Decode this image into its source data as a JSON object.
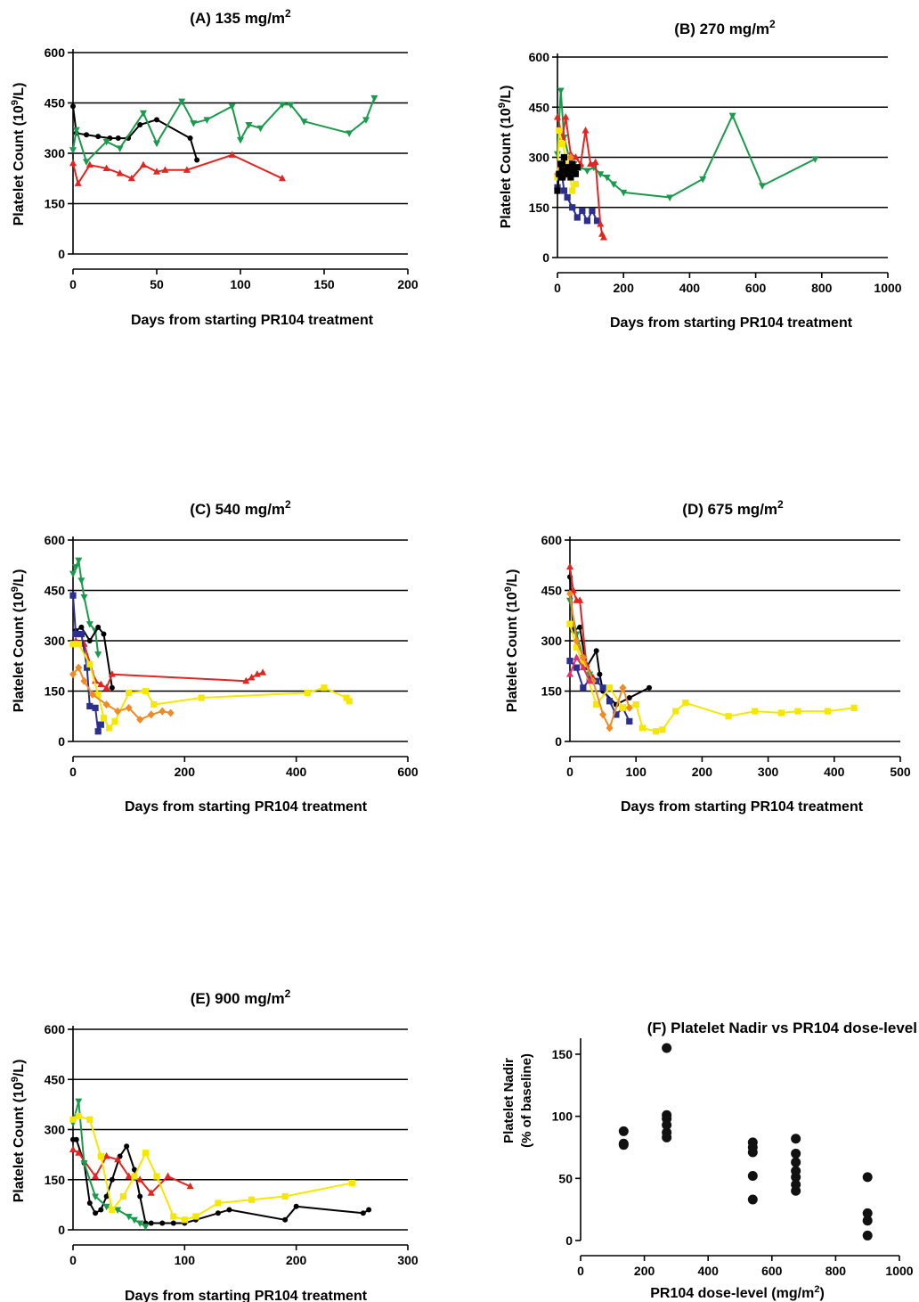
{
  "colors": {
    "black": "#000000",
    "red": "#e32420",
    "green": "#1a9a4c",
    "blue": "#2b2f8f",
    "yellow": "#f5e800",
    "orange": "#f08a24",
    "magenta": "#e0306e"
  },
  "chart_data": [
    {
      "type": "line",
      "title": "(A) 135 mg/m",
      "title_sup": "2",
      "xlabel": "Days from starting PR104 treatment",
      "ylabel": "Platelet Count (10",
      "ylabel_sup": "9",
      "ylabel_end": "/L)",
      "xlim": [
        0,
        200
      ],
      "ylim": [
        0,
        600
      ],
      "xticks": [
        "0",
        "50",
        "100",
        "150",
        "200"
      ],
      "yticks": [
        "0",
        "150",
        "300",
        "450",
        "600"
      ],
      "grid": "horizontal",
      "series": [
        {
          "color": "black",
          "marker": "circle",
          "x": [
            0,
            2,
            8,
            15,
            22,
            27,
            33,
            40,
            50,
            70,
            74
          ],
          "y": [
            440,
            360,
            355,
            350,
            345,
            345,
            345,
            385,
            400,
            345,
            280
          ]
        },
        {
          "color": "red",
          "marker": "triangle-up",
          "x": [
            0,
            3,
            10,
            20,
            28,
            35,
            42,
            50,
            55,
            68,
            95,
            125
          ],
          "y": [
            270,
            210,
            265,
            255,
            240,
            225,
            265,
            245,
            250,
            250,
            295,
            225
          ]
        },
        {
          "color": "green",
          "marker": "triangle-down",
          "x": [
            0,
            2,
            8,
            20,
            28,
            42,
            50,
            65,
            72,
            80,
            95,
            100,
            105,
            112,
            125,
            130,
            138,
            165,
            175,
            180
          ],
          "y": [
            310,
            370,
            275,
            335,
            315,
            420,
            330,
            455,
            390,
            400,
            440,
            340,
            385,
            375,
            445,
            445,
            395,
            360,
            400,
            465
          ]
        }
      ]
    },
    {
      "type": "line",
      "title": "(B) 270 mg/m",
      "title_sup": "2",
      "xlabel": "Days from starting PR104 treatment",
      "ylabel": "Platelet Count (10",
      "ylabel_sup": "9",
      "ylabel_end": "/L)",
      "xlim": [
        0,
        1000
      ],
      "ylim": [
        0,
        600
      ],
      "xticks": [
        "0",
        "200",
        "400",
        "600",
        "800",
        "1000"
      ],
      "yticks": [
        "0",
        "150",
        "300",
        "450",
        "600"
      ],
      "grid": "horizontal",
      "series": [
        {
          "color": "green",
          "marker": "triangle-down",
          "x": [
            0,
            10,
            20,
            35,
            50,
            70,
            90,
            110,
            130,
            150,
            170,
            200,
            340,
            440,
            530,
            620,
            780
          ],
          "y": [
            310,
            500,
            360,
            300,
            280,
            270,
            260,
            270,
            250,
            240,
            220,
            195,
            180,
            235,
            425,
            215,
            295
          ]
        },
        {
          "color": "blue",
          "marker": "square",
          "x": [
            0,
            10,
            20,
            30,
            45,
            60,
            75,
            90,
            105,
            120
          ],
          "y": [
            210,
            280,
            200,
            180,
            150,
            120,
            140,
            110,
            140,
            110
          ]
        },
        {
          "color": "red",
          "marker": "triangle-up",
          "x": [
            0,
            15,
            25,
            40,
            55,
            70,
            85,
            100,
            115,
            130,
            135,
            140
          ],
          "y": [
            420,
            360,
            420,
            310,
            300,
            280,
            380,
            280,
            285,
            100,
            70,
            60
          ]
        },
        {
          "color": "yellow",
          "marker": "square",
          "x": [
            0,
            5,
            15,
            25,
            35,
            45,
            55
          ],
          "y": [
            240,
            380,
            340,
            300,
            260,
            200,
            220
          ]
        },
        {
          "color": "orange",
          "marker": "diamond",
          "x": [
            0,
            10,
            20,
            30,
            40
          ],
          "y": [
            250,
            270,
            240,
            260,
            300
          ]
        },
        {
          "color": "black",
          "marker": "square",
          "x": [
            0,
            5,
            10,
            15,
            20,
            25,
            30,
            35,
            40,
            45,
            50,
            55,
            60
          ],
          "y": [
            200,
            250,
            280,
            240,
            300,
            260,
            250,
            270,
            240,
            280,
            260,
            250,
            270
          ]
        }
      ]
    },
    {
      "type": "line",
      "title": "(C) 540 mg/m",
      "title_sup": "2",
      "xlabel": "Days from starting PR104 treatment",
      "ylabel": "Platelet Count (10",
      "ylabel_sup": "9",
      "ylabel_end": "/L)",
      "xlim": [
        0,
        600
      ],
      "ylim": [
        0,
        600
      ],
      "xticks": [
        "0",
        "200",
        "400",
        "600"
      ],
      "yticks": [
        "0",
        "150",
        "300",
        "450",
        "600"
      ],
      "grid": "horizontal",
      "series": [
        {
          "color": "green",
          "marker": "triangle-down",
          "x": [
            0,
            5,
            10,
            15,
            20,
            30,
            40,
            45
          ],
          "y": [
            500,
            520,
            540,
            480,
            430,
            350,
            330,
            260
          ]
        },
        {
          "color": "black",
          "marker": "circle",
          "x": [
            5,
            15,
            30,
            45,
            55,
            70
          ],
          "y": [
            330,
            340,
            300,
            340,
            320,
            160
          ]
        },
        {
          "color": "red",
          "marker": "triangle-up",
          "x": [
            5,
            20,
            40,
            50,
            60,
            70,
            310,
            320,
            330,
            340
          ],
          "y": [
            300,
            290,
            180,
            170,
            160,
            200,
            180,
            190,
            200,
            205
          ]
        },
        {
          "color": "blue",
          "marker": "square",
          "x": [
            0,
            5,
            15,
            25,
            30,
            40,
            45,
            50
          ],
          "y": [
            435,
            320,
            320,
            220,
            105,
            100,
            30,
            50
          ]
        },
        {
          "color": "yellow",
          "marker": "square",
          "x": [
            0,
            10,
            30,
            45,
            55,
            65,
            75,
            100,
            130,
            145,
            230,
            420,
            450,
            490,
            495
          ],
          "y": [
            290,
            290,
            230,
            140,
            70,
            40,
            60,
            145,
            150,
            110,
            130,
            145,
            160,
            130,
            120
          ]
        },
        {
          "color": "orange",
          "marker": "diamond",
          "x": [
            0,
            10,
            20,
            35,
            60,
            80,
            100,
            120,
            140,
            160,
            175
          ],
          "y": [
            200,
            220,
            180,
            140,
            110,
            90,
            100,
            65,
            80,
            90,
            85
          ]
        }
      ]
    },
    {
      "type": "line",
      "title": "(D) 675 mg/m",
      "title_sup": "2",
      "xlabel": "Days from starting PR104 treatment",
      "ylabel": "Platelet Count (10",
      "ylabel_sup": "9",
      "ylabel_end": "/L)",
      "xlim": [
        0,
        500
      ],
      "ylim": [
        0,
        600
      ],
      "xticks": [
        "0",
        "100",
        "200",
        "300",
        "400",
        "500"
      ],
      "yticks": [
        "0",
        "150",
        "300",
        "450",
        "600"
      ],
      "grid": "horizontal",
      "series": [
        {
          "color": "black",
          "marker": "circle",
          "x": [
            0,
            5,
            15,
            25,
            40,
            45,
            50,
            70,
            90,
            120
          ],
          "y": [
            490,
            330,
            340,
            220,
            270,
            200,
            150,
            110,
            130,
            160
          ]
        },
        {
          "color": "red",
          "marker": "triangle-up",
          "x": [
            0,
            5,
            10,
            15,
            25,
            35
          ],
          "y": [
            520,
            450,
            420,
            420,
            230,
            190
          ]
        },
        {
          "color": "green",
          "marker": "triangle-down",
          "x": [
            0,
            10,
            20,
            30
          ],
          "y": [
            420,
            320,
            250,
            200
          ]
        },
        {
          "color": "blue",
          "marker": "square",
          "x": [
            0,
            10,
            20,
            30,
            40,
            50,
            60,
            70,
            80,
            90
          ],
          "y": [
            240,
            220,
            160,
            185,
            180,
            160,
            120,
            80,
            100,
            60
          ]
        },
        {
          "color": "yellow",
          "marker": "square",
          "x": [
            0,
            10,
            20,
            40,
            60,
            80,
            100,
            110,
            130,
            140,
            160,
            175,
            240,
            280,
            320,
            345,
            390,
            430
          ],
          "y": [
            350,
            280,
            230,
            110,
            160,
            100,
            110,
            40,
            30,
            35,
            90,
            115,
            75,
            90,
            85,
            90,
            90,
            100
          ]
        },
        {
          "color": "orange",
          "marker": "diamond",
          "x": [
            0,
            10,
            20,
            35,
            50,
            60,
            80,
            90
          ],
          "y": [
            440,
            300,
            250,
            180,
            80,
            40,
            160,
            100
          ]
        },
        {
          "color": "magenta",
          "marker": "triangle-up",
          "x": [
            0,
            10,
            20,
            30
          ],
          "y": [
            200,
            250,
            220,
            180
          ]
        }
      ]
    },
    {
      "type": "line",
      "title": "(E) 900 mg/m",
      "title_sup": "2",
      "xlabel": "Days from starting PR104 treatment",
      "ylabel": "Platelet Count (10",
      "ylabel_sup": "9",
      "ylabel_end": "/L)",
      "xlim": [
        0,
        300
      ],
      "ylim": [
        0,
        600
      ],
      "xticks": [
        "0",
        "100",
        "200",
        "300"
      ],
      "yticks": [
        "0",
        "150",
        "300",
        "450",
        "600"
      ],
      "grid": "horizontal",
      "series": [
        {
          "color": "black",
          "marker": "circle",
          "x": [
            0,
            3,
            10,
            15,
            20,
            25,
            30,
            35,
            42,
            48,
            55,
            60,
            65,
            70,
            80,
            90,
            100,
            110,
            130,
            140,
            190,
            200,
            260,
            265
          ],
          "y": [
            270,
            270,
            200,
            80,
            50,
            60,
            100,
            150,
            220,
            250,
            180,
            100,
            20,
            20,
            20,
            20,
            20,
            30,
            50,
            60,
            30,
            70,
            50,
            60
          ]
        },
        {
          "color": "red",
          "marker": "triangle-up",
          "x": [
            0,
            5,
            20,
            30,
            40,
            50,
            60,
            70,
            85,
            105
          ],
          "y": [
            240,
            230,
            160,
            220,
            210,
            160,
            150,
            110,
            160,
            130
          ]
        },
        {
          "color": "green",
          "marker": "triangle-down",
          "x": [
            0,
            5,
            10,
            20,
            30,
            40,
            50,
            55,
            60,
            65
          ],
          "y": [
            320,
            385,
            200,
            100,
            70,
            60,
            40,
            30,
            20,
            10
          ]
        },
        {
          "color": "yellow",
          "marker": "square",
          "x": [
            0,
            5,
            15,
            25,
            35,
            45,
            55,
            65,
            75,
            90,
            100,
            110,
            130,
            160,
            190,
            250
          ],
          "y": [
            330,
            340,
            330,
            220,
            60,
            100,
            160,
            230,
            160,
            40,
            30,
            40,
            80,
            90,
            100,
            140
          ]
        }
      ]
    },
    {
      "type": "scatter",
      "title": "(F) Platelet Nadir vs PR104 dose-level",
      "xlabel": "PR104 dose-level (mg/m",
      "xlabel_sup": "2",
      "xlabel_end": ")",
      "ylabel_line1": "Platelet Nadir",
      "ylabel_line2": "(% of baseline)",
      "xlim": [
        0,
        1000
      ],
      "ylim": [
        0,
        160
      ],
      "xticks": [
        "0",
        "200",
        "400",
        "600",
        "800",
        "1000"
      ],
      "yticks": [
        "0",
        "50",
        "100",
        "150"
      ],
      "grid": "none",
      "points": [
        {
          "x": 135,
          "y": 88
        },
        {
          "x": 135,
          "y": 78
        },
        {
          "x": 135,
          "y": 77
        },
        {
          "x": 270,
          "y": 155
        },
        {
          "x": 270,
          "y": 101
        },
        {
          "x": 270,
          "y": 98
        },
        {
          "x": 270,
          "y": 93
        },
        {
          "x": 270,
          "y": 87
        },
        {
          "x": 270,
          "y": 83
        },
        {
          "x": 540,
          "y": 79
        },
        {
          "x": 540,
          "y": 75
        },
        {
          "x": 540,
          "y": 71
        },
        {
          "x": 540,
          "y": 52
        },
        {
          "x": 540,
          "y": 33
        },
        {
          "x": 675,
          "y": 82
        },
        {
          "x": 675,
          "y": 70
        },
        {
          "x": 675,
          "y": 63
        },
        {
          "x": 675,
          "y": 56
        },
        {
          "x": 675,
          "y": 51
        },
        {
          "x": 675,
          "y": 45
        },
        {
          "x": 675,
          "y": 40
        },
        {
          "x": 900,
          "y": 51
        },
        {
          "x": 900,
          "y": 22
        },
        {
          "x": 900,
          "y": 16
        },
        {
          "x": 900,
          "y": 4
        }
      ]
    }
  ]
}
